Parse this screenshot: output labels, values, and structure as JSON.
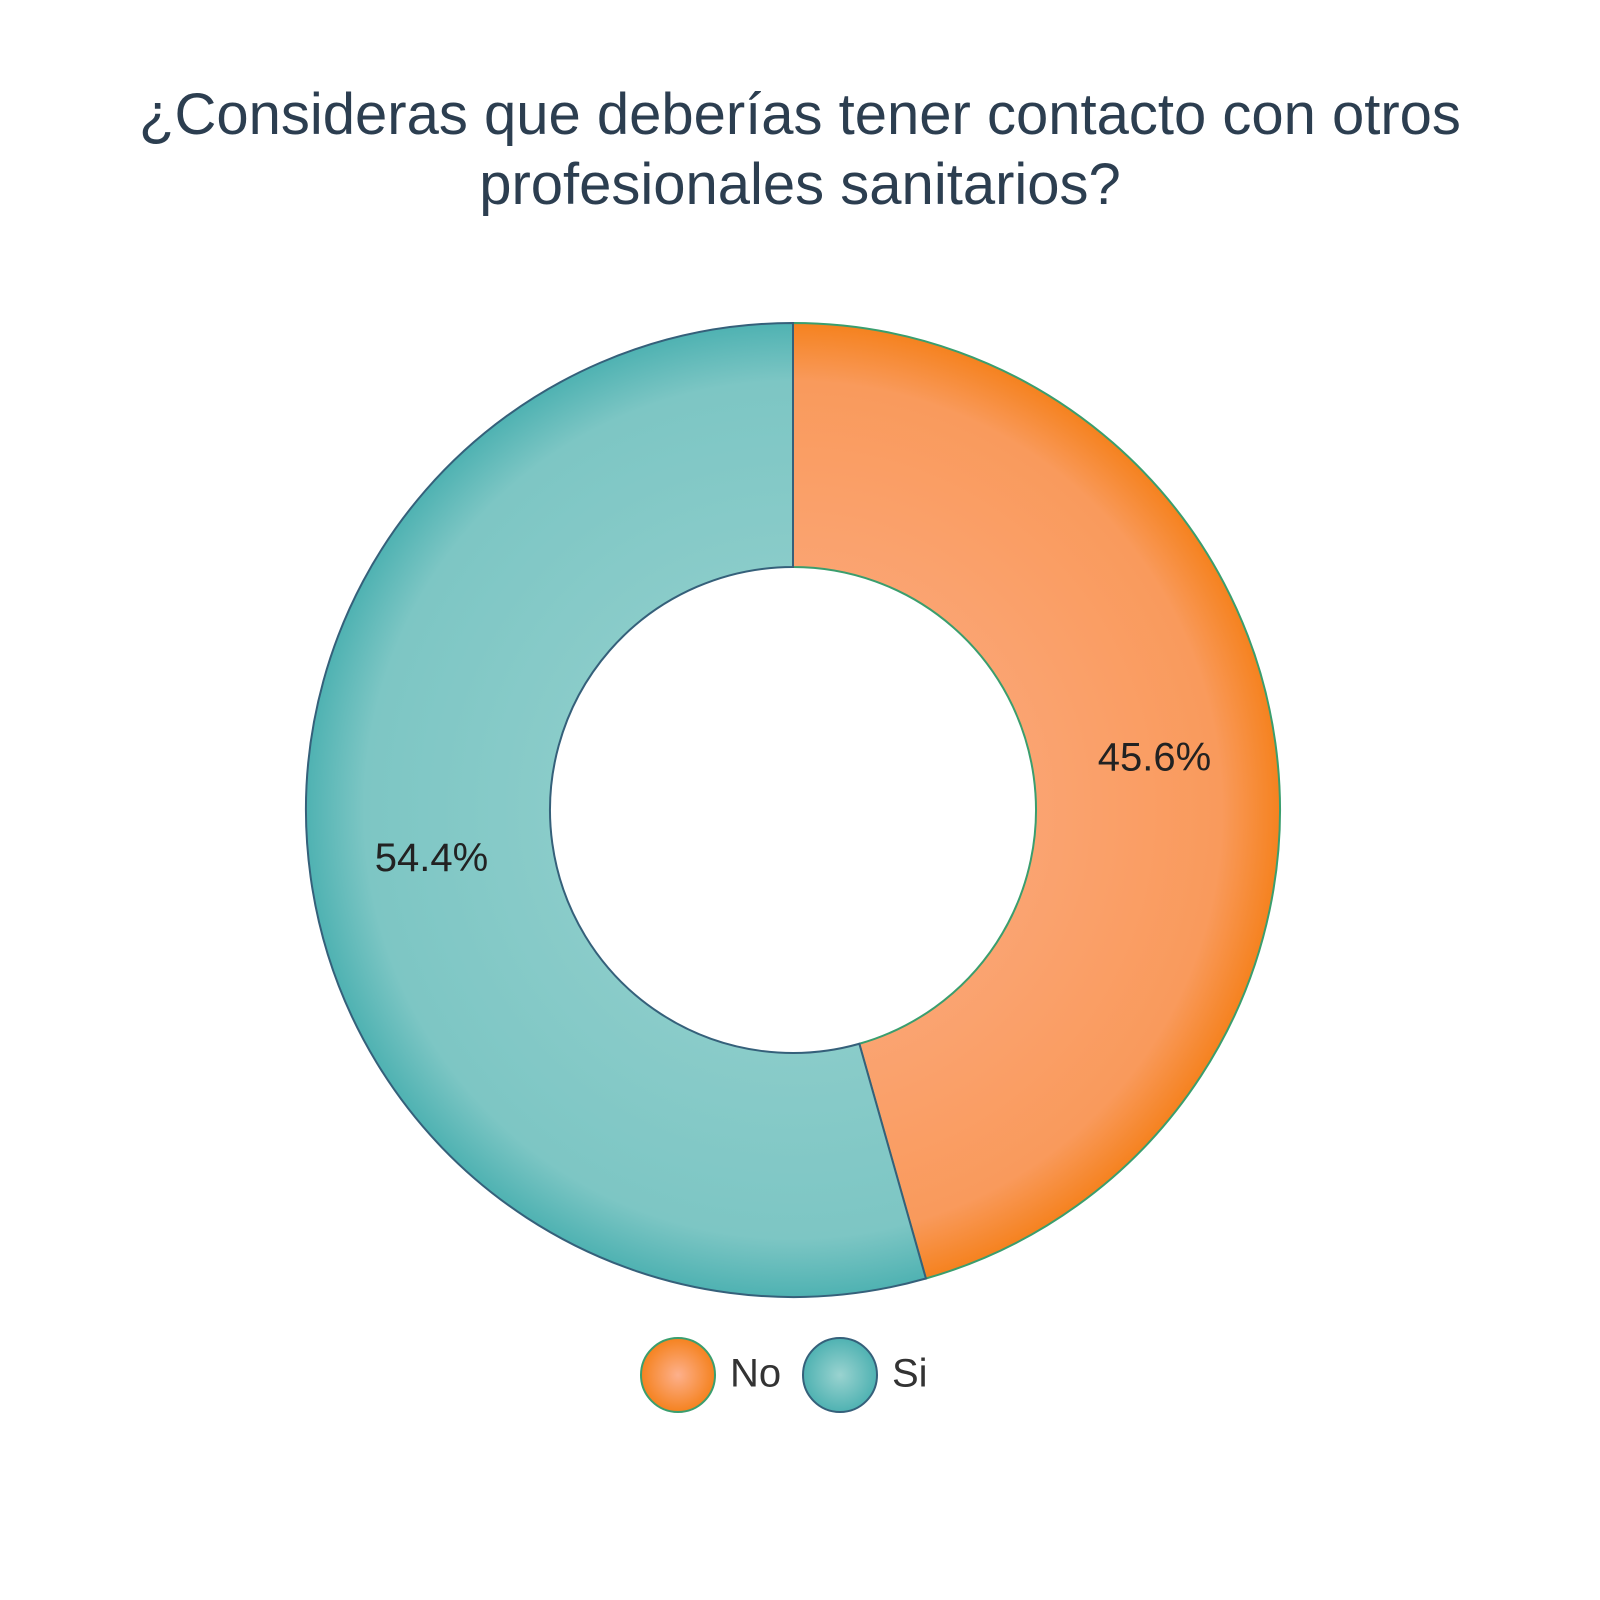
{
  "chart_data": {
    "type": "pie",
    "title_lines": [
      "¿Consideras que deberías tener contacto con otros",
      "profesionales sanitarios?"
    ],
    "categories": [
      "No",
      "Si"
    ],
    "values": [
      45.6,
      54.4
    ],
    "value_labels": [
      "45.6%",
      "54.4%"
    ],
    "colors": [
      "#f5821f",
      "#4fb2b2"
    ],
    "light_colors": [
      "#fdb08c",
      "#9ad3d0"
    ],
    "stroke_colors": [
      "#3a9e6e",
      "#35607a"
    ],
    "donut": true,
    "legend_position": "bottom-center"
  }
}
